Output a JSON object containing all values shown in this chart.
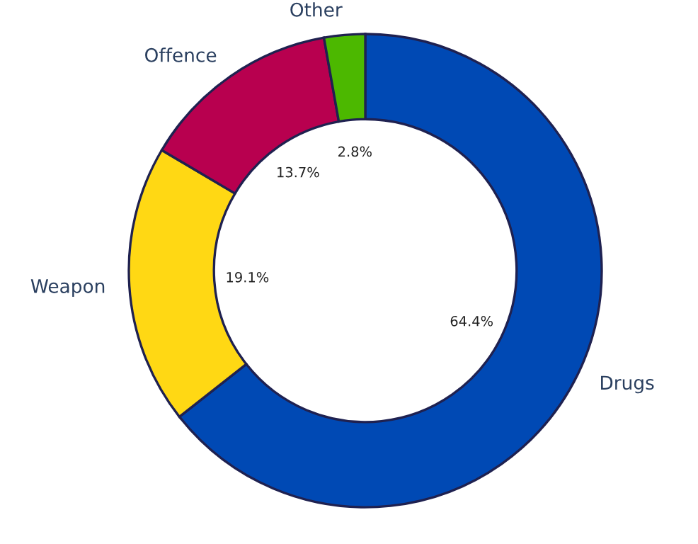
{
  "chart_data": {
    "type": "donut",
    "categories": [
      "Drugs",
      "Weapon",
      "Offence",
      "Other"
    ],
    "values": [
      64.4,
      19.1,
      13.7,
      2.8
    ],
    "colors": [
      "#0049b4",
      "#ffd814",
      "#b8004f",
      "#4cb800"
    ],
    "value_labels": [
      "64.4%",
      "19.1%",
      "13.7%",
      "2.8%"
    ],
    "legend": false
  }
}
